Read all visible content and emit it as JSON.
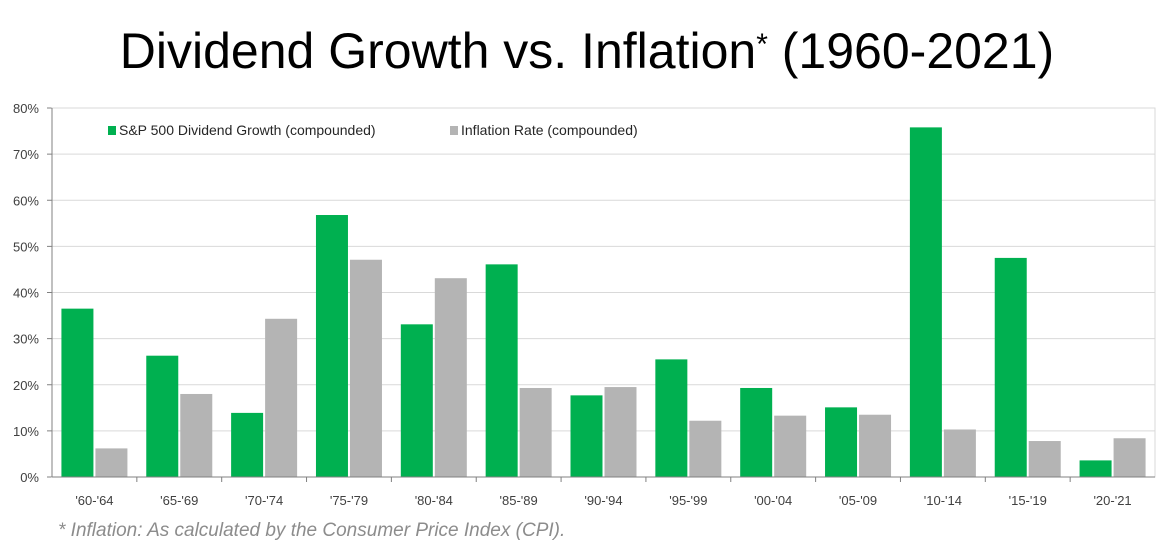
{
  "chart_data": {
    "type": "bar",
    "title": "Dividend Growth vs. Inflation",
    "title_marker": "*",
    "title_period": "(1960-2021)",
    "categories": [
      "'60-'64",
      "'65-'69",
      "'70-'74",
      "'75-'79",
      "'80-'84",
      "'85-'89",
      "'90-'94",
      "'95-'99",
      "'00-'04",
      "'05-'09",
      "'10-'14",
      "'15-'19",
      "'20-'21"
    ],
    "series": [
      {
        "name": "S&P 500 Dividend Growth (compounded)",
        "color": "#00b050",
        "values": [
          36.5,
          26.3,
          13.9,
          56.8,
          33.1,
          46.1,
          17.7,
          25.5,
          19.3,
          15.1,
          75.8,
          47.5,
          3.6
        ]
      },
      {
        "name": "Inflation Rate (compounded)",
        "color": "#b4b4b4",
        "values": [
          6.2,
          18.0,
          34.3,
          47.1,
          43.1,
          19.3,
          19.5,
          12.2,
          13.3,
          13.5,
          10.3,
          7.8,
          8.4
        ]
      }
    ],
    "ylim": [
      0,
      80
    ],
    "yticks": [
      "0%",
      "10%",
      "20%",
      "30%",
      "40%",
      "50%",
      "60%",
      "70%",
      "80%"
    ],
    "xlabel": "",
    "ylabel": "",
    "grid": true,
    "legend": "top-left"
  },
  "footnote": "* Inflation: As calculated by the Consumer Price Index (CPI)."
}
